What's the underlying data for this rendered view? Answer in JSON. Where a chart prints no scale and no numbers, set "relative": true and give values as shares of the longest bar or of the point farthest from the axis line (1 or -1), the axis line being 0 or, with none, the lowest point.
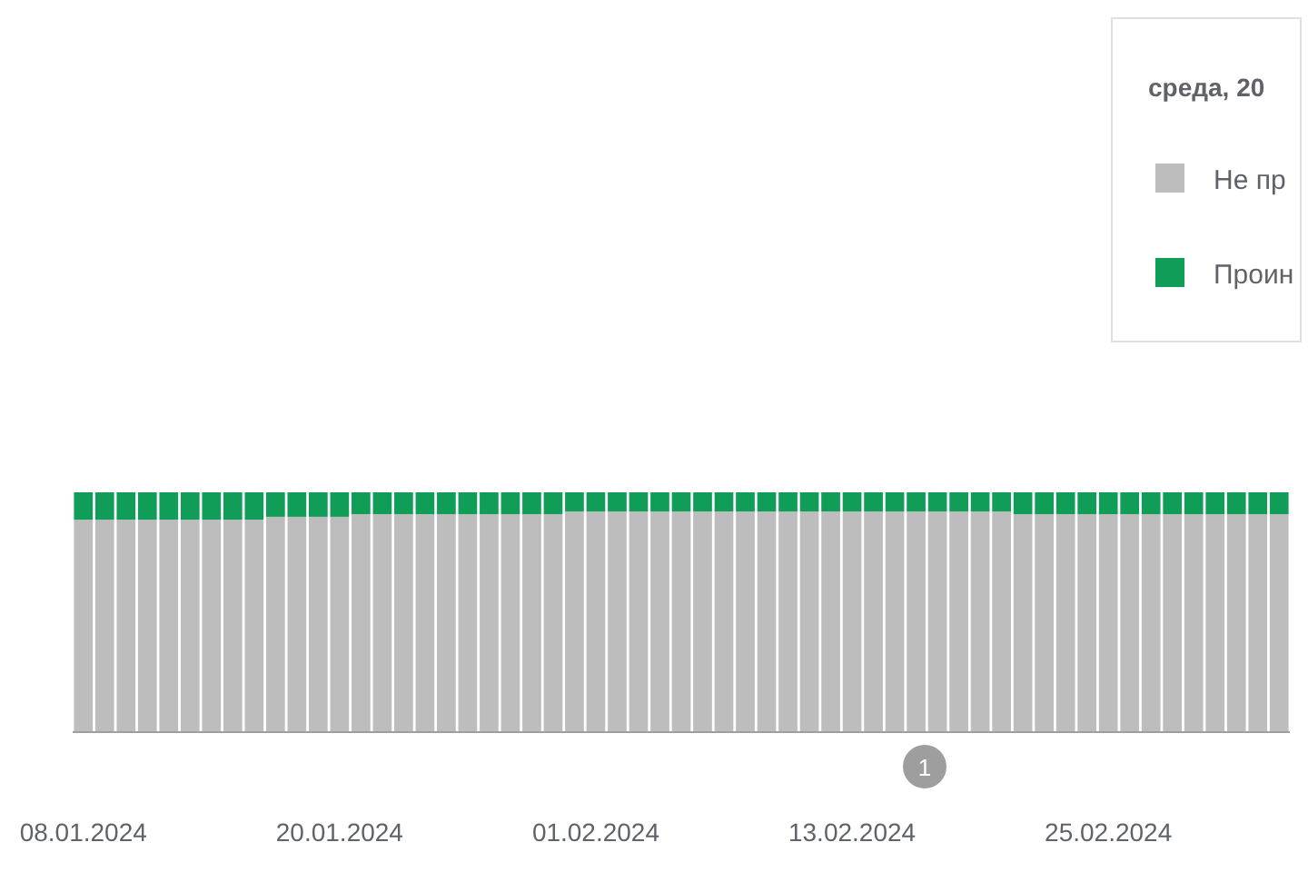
{
  "chart_data": {
    "type": "bar",
    "stacked": true,
    "relative": true,
    "legend": "top right",
    "legend_title": "среда, 20",
    "categories": [
      "08.01.2024",
      null,
      null,
      null,
      null,
      null,
      null,
      null,
      null,
      null,
      null,
      null,
      "20.01.2024",
      null,
      null,
      null,
      null,
      null,
      null,
      null,
      null,
      null,
      null,
      null,
      "01.02.2024",
      null,
      null,
      null,
      null,
      null,
      null,
      null,
      null,
      null,
      null,
      null,
      "13.02.2024",
      null,
      null,
      null,
      null,
      null,
      null,
      null,
      null,
      null,
      null,
      null,
      "25.02.2024",
      null,
      null,
      null,
      null,
      null,
      null,
      null,
      null
    ],
    "series": [
      {
        "name": "Не пр",
        "color": "#bdbdbd",
        "values": [
          0.886,
          0.886,
          0.886,
          0.886,
          0.886,
          0.886,
          0.886,
          0.886,
          0.886,
          0.898,
          0.898,
          0.898,
          0.898,
          0.909,
          0.909,
          0.909,
          0.909,
          0.909,
          0.909,
          0.909,
          0.909,
          0.909,
          0.909,
          0.92,
          0.92,
          0.92,
          0.92,
          0.92,
          0.92,
          0.92,
          0.92,
          0.92,
          0.92,
          0.92,
          0.92,
          0.92,
          0.92,
          0.92,
          0.92,
          0.92,
          0.92,
          0.92,
          0.92,
          0.92,
          0.909,
          0.909,
          0.909,
          0.909,
          0.909,
          0.909,
          0.909,
          0.909,
          0.909,
          0.909,
          0.909,
          0.909,
          0.909
        ]
      },
      {
        "name": "Проин",
        "color": "#0f9d58",
        "values": [
          0.114,
          0.114,
          0.114,
          0.114,
          0.114,
          0.114,
          0.114,
          0.114,
          0.114,
          0.102,
          0.102,
          0.102,
          0.102,
          0.091,
          0.091,
          0.091,
          0.091,
          0.091,
          0.091,
          0.091,
          0.091,
          0.091,
          0.091,
          0.08,
          0.08,
          0.08,
          0.08,
          0.08,
          0.08,
          0.08,
          0.08,
          0.08,
          0.08,
          0.08,
          0.08,
          0.08,
          0.08,
          0.08,
          0.08,
          0.08,
          0.08,
          0.08,
          0.08,
          0.08,
          0.091,
          0.091,
          0.091,
          0.091,
          0.091,
          0.091,
          0.091,
          0.091,
          0.091,
          0.091,
          0.091,
          0.091,
          0.091
        ]
      }
    ],
    "annotations": [
      "1"
    ]
  }
}
